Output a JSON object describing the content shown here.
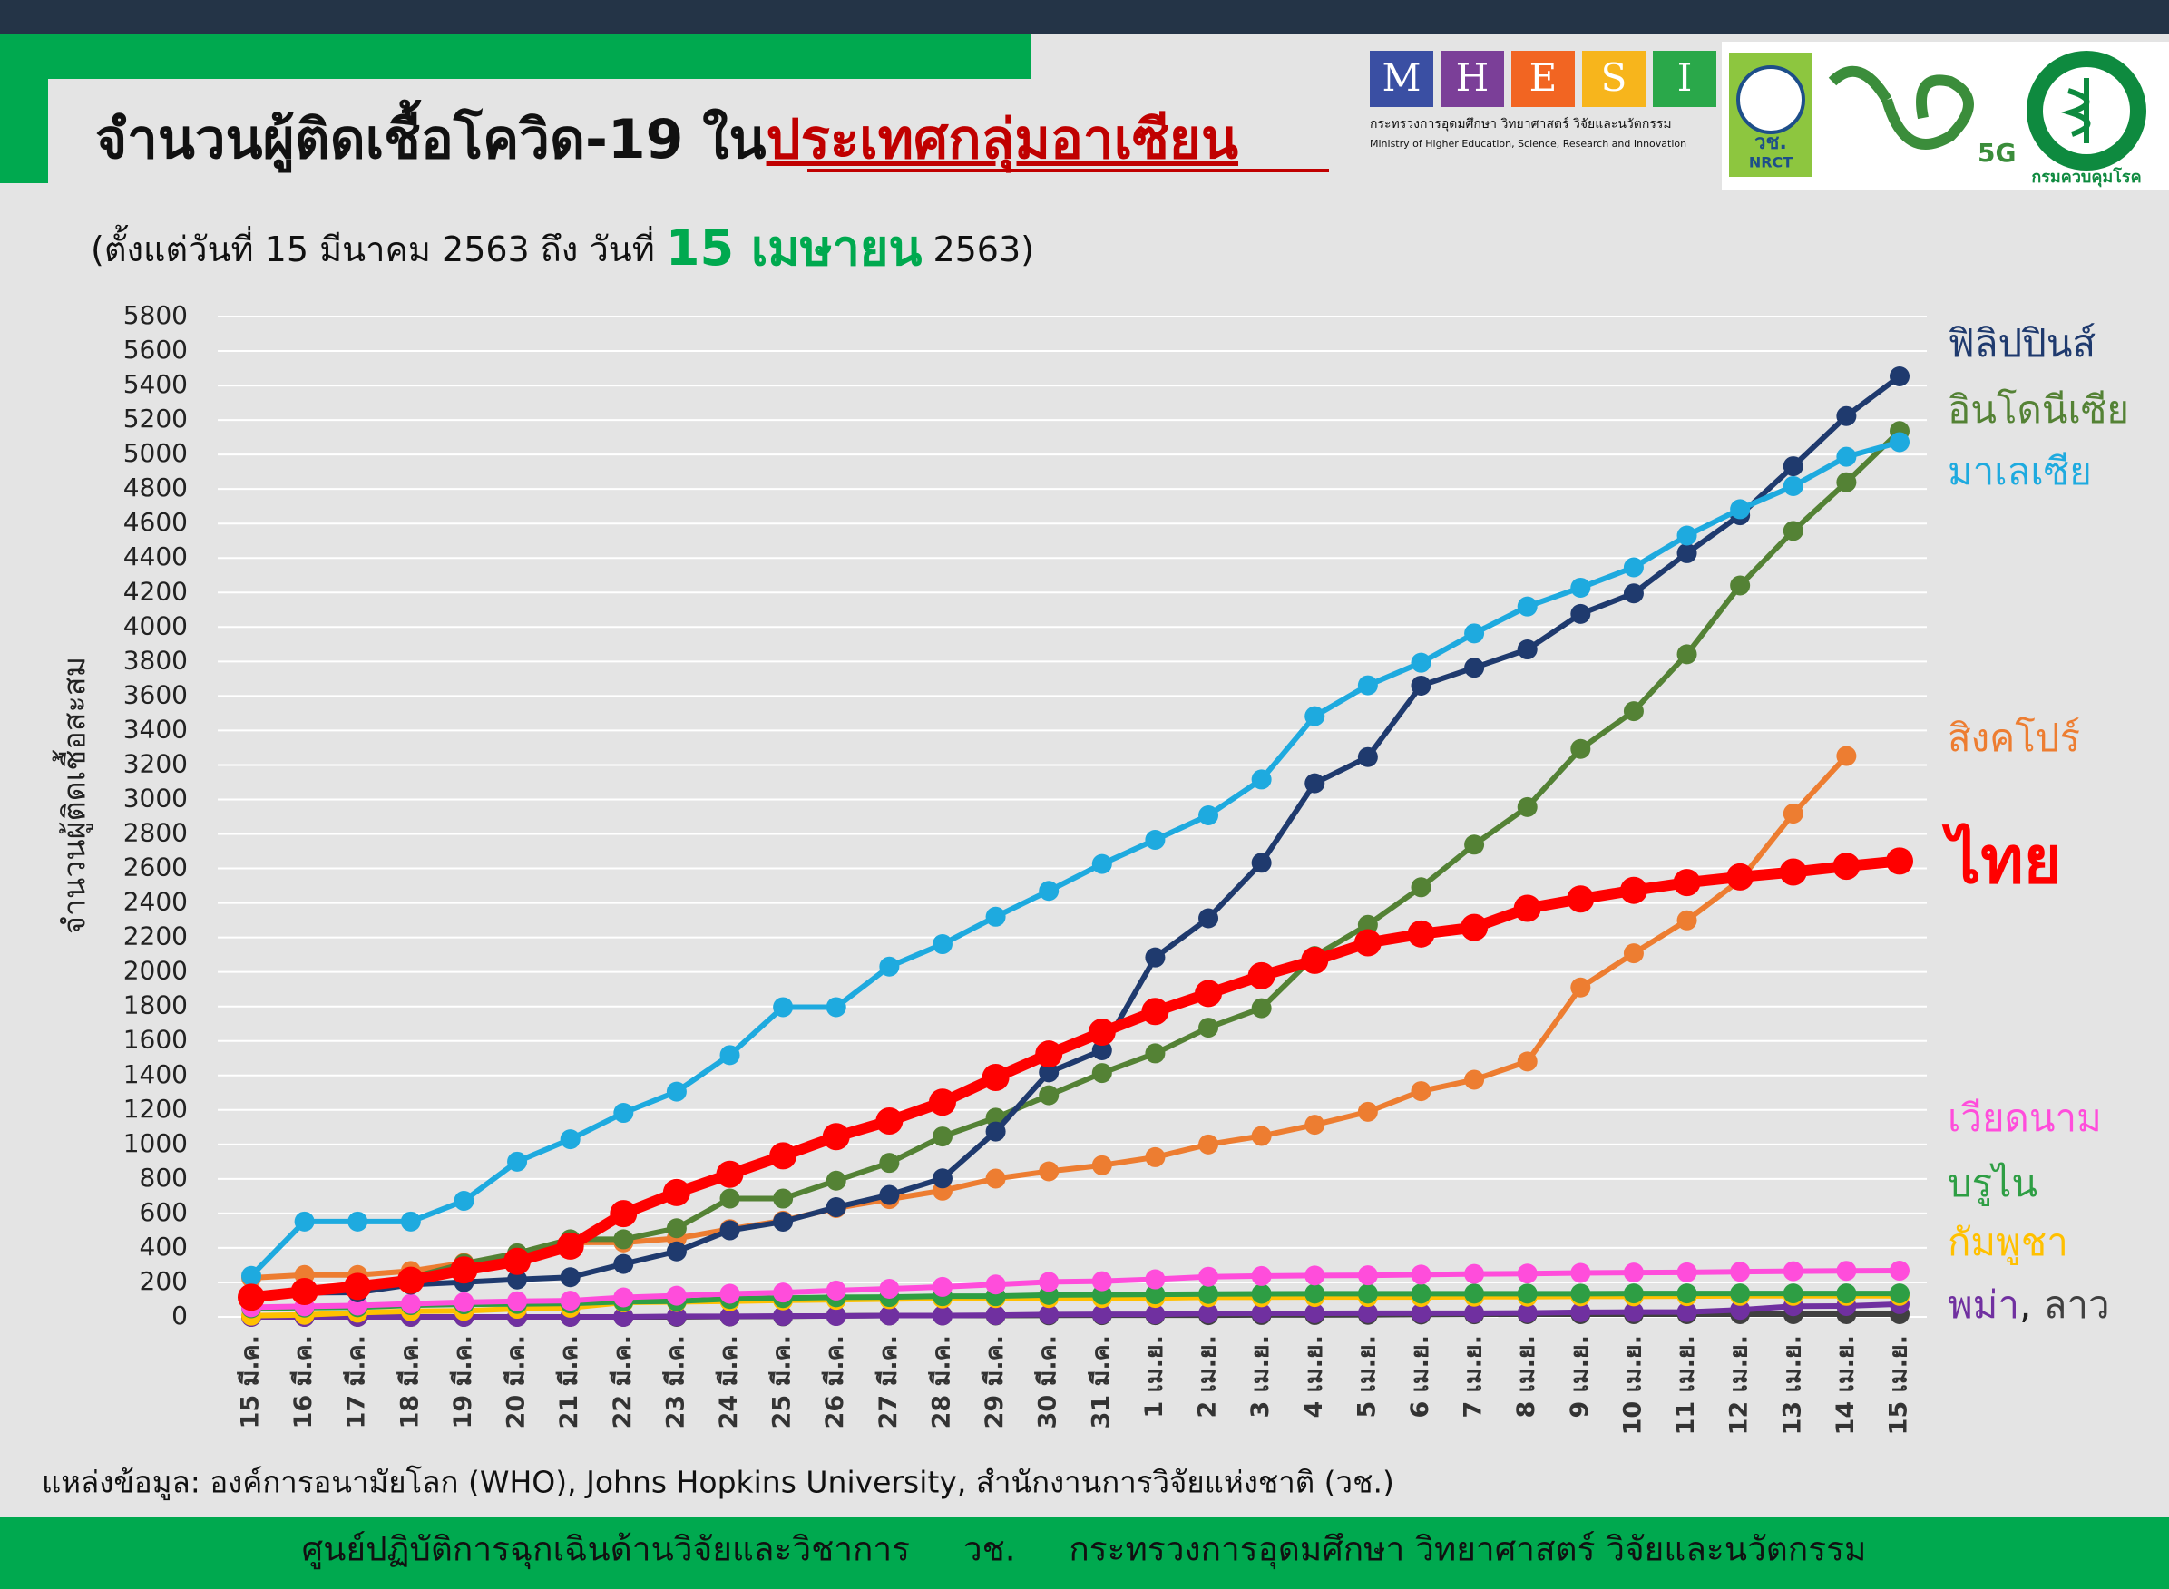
{
  "header": {
    "title": "จำนวนผู้ติดเชื้อโควิด-19 ใน",
    "title_highlight": "ประเทศกลุ่มอาเซียน",
    "subtitle_start": "(ตั้งแต่วันที่ 15 มีนาคม 2563 ถึง วันที่ ",
    "subtitle_date": "15 เมษายน",
    "subtitle_end": " 2563)",
    "logos": {
      "letters": [
        "M",
        "H",
        "E",
        "S",
        "I"
      ],
      "ministry_th": "กระทรวงการอุดมศึกษา วิทยาศาสตร์ วิจัยและนวัตกรรม",
      "ministry_en": "Ministry of Higher Education, Science, Research and Innovation",
      "nrct_th": "วช.",
      "nrct_en": "NRCT",
      "g5": "5G",
      "ddc": "กรมควบคุมโรค"
    }
  },
  "chart_data": {
    "type": "line",
    "y_label": "จำนวนผู้ติดเชื้อสะสม",
    "categories": [
      "15 มี.ค.",
      "16 มี.ค.",
      "17 มี.ค.",
      "18 มี.ค.",
      "19 มี.ค.",
      "20 มี.ค.",
      "21 มี.ค.",
      "22 มี.ค.",
      "23 มี.ค.",
      "24 มี.ค.",
      "25 มี.ค.",
      "26 มี.ค.",
      "27 มี.ค.",
      "28 มี.ค.",
      "29 มี.ค.",
      "30 มี.ค.",
      "31 มี.ค.",
      "1 เม.ย.",
      "2 เม.ย.",
      "3 เม.ย.",
      "4 เม.ย.",
      "5 เม.ย.",
      "6 เม.ย.",
      "7 เม.ย.",
      "8 เม.ย.",
      "9 เม.ย.",
      "10 เม.ย.",
      "11 เม.ย.",
      "12 เม.ย.",
      "13 เม.ย.",
      "14 เม.ย.",
      "15 เม.ย."
    ],
    "ylim": [
      0,
      5800
    ],
    "yticks": [
      0,
      200,
      400,
      600,
      800,
      1000,
      1200,
      1400,
      1600,
      1800,
      2000,
      2200,
      2400,
      2600,
      2800,
      3000,
      3200,
      3400,
      3600,
      3800,
      4000,
      4200,
      4400,
      4600,
      4800,
      5000,
      5200,
      5400,
      5600,
      5800
    ],
    "grid": true,
    "legend_separator": ", ",
    "series": [
      {
        "name": "ฟิลิปปินส์",
        "color": "#1f3a6e",
        "values": [
          111,
          140,
          142,
          187,
          202,
          217,
          230,
          307,
          380,
          502,
          552,
          636,
          707,
          803,
          1075,
          1418,
          1546,
          2084,
          2311,
          2633,
          3094,
          3246,
          3660,
          3764,
          3870,
          4076,
          4195,
          4428,
          4648,
          4932,
          5223,
          5453
        ]
      },
      {
        "name": "อินโดนีเซีย",
        "color": "#548235",
        "values": [
          117,
          134,
          172,
          227,
          309,
          369,
          450,
          450,
          514,
          686,
          686,
          790,
          893,
          1046,
          1155,
          1285,
          1414,
          1528,
          1677,
          1790,
          2092,
          2273,
          2491,
          2738,
          2956,
          3293,
          3512,
          3842,
          4241,
          4557,
          4839,
          5136
        ]
      },
      {
        "name": "มาเลเซีย",
        "color": "#1eaadf",
        "values": [
          238,
          553,
          553,
          553,
          673,
          900,
          1030,
          1183,
          1306,
          1518,
          1796,
          1796,
          2031,
          2161,
          2320,
          2470,
          2626,
          2766,
          2908,
          3116,
          3483,
          3662,
          3793,
          3963,
          4119,
          4228,
          4346,
          4530,
          4683,
          4817,
          4987,
          5072
        ]
      },
      {
        "name": "สิงคโปร์",
        "color": "#ed7d31",
        "values": [
          226,
          243,
          243,
          266,
          313,
          345,
          432,
          432,
          455,
          509,
          558,
          631,
          683,
          732,
          802,
          844,
          879,
          926,
          1000,
          1049,
          1114,
          1189,
          1309,
          1375,
          1481,
          1910,
          2108,
          2299,
          2532,
          2918,
          3252,
          null
        ]
      },
      {
        "name": "ไทย",
        "color": "#ff0000",
        "values": [
          114,
          147,
          177,
          212,
          272,
          322,
          411,
          599,
          721,
          827,
          934,
          1045,
          1136,
          1245,
          1388,
          1524,
          1651,
          1771,
          1875,
          1978,
          2067,
          2169,
          2220,
          2258,
          2369,
          2423,
          2473,
          2518,
          2551,
          2579,
          2613,
          2643
        ]
      },
      {
        "name": "เวียดนาม",
        "color": "#ff4ddb",
        "values": [
          56,
          61,
          66,
          76,
          85,
          91,
          94,
          113,
          123,
          134,
          141,
          153,
          163,
          174,
          188,
          203,
          207,
          218,
          233,
          237,
          240,
          241,
          245,
          249,
          251,
          255,
          257,
          258,
          262,
          265,
          267,
          268
        ]
      },
      {
        "name": "บรูไน",
        "color": "#2e9e44",
        "values": [
          50,
          54,
          56,
          68,
          73,
          75,
          78,
          88,
          91,
          104,
          109,
          114,
          115,
          120,
          120,
          127,
          129,
          131,
          133,
          134,
          135,
          135,
          135,
          135,
          135,
          135,
          136,
          136,
          136,
          136,
          136,
          136
        ]
      },
      {
        "name": "กัมพูชา",
        "color": "#ffc000",
        "values": [
          7,
          12,
          24,
          33,
          35,
          47,
          53,
          84,
          87,
          91,
          96,
          99,
          103,
          107,
          109,
          109,
          109,
          110,
          114,
          114,
          115,
          115,
          115,
          117,
          117,
          119,
          119,
          120,
          122,
          122,
          122,
          122
        ]
      },
      {
        "name": "พม่า",
        "color": "#7030a0",
        "values": [
          0,
          0,
          0,
          0,
          0,
          0,
          0,
          0,
          3,
          3,
          5,
          5,
          8,
          8,
          10,
          14,
          15,
          15,
          20,
          21,
          21,
          22,
          22,
          22,
          23,
          27,
          28,
          28,
          41,
          62,
          63,
          74
        ]
      },
      {
        "name": "ลาว",
        "color": "#404040",
        "values": [
          0,
          0,
          0,
          0,
          0,
          0,
          0,
          0,
          0,
          2,
          3,
          6,
          8,
          8,
          8,
          9,
          10,
          10,
          10,
          11,
          11,
          12,
          14,
          15,
          16,
          16,
          16,
          16,
          16,
          16,
          16,
          16
        ]
      }
    ]
  },
  "source": "แหล่งข้อมูล: องค์การอนามัยโลก (WHO), Johns Hopkins University, สำนักงานการวิจัยแห่งชาติ (วช.)",
  "footer": "ศูนย์ปฏิบัติการฉุกเฉินด้านวิจัยและวิชาการ     วช.     กระทรวงการอุดมศึกษา วิทยาศาสตร์ วิจัยและนวัตกรรม"
}
